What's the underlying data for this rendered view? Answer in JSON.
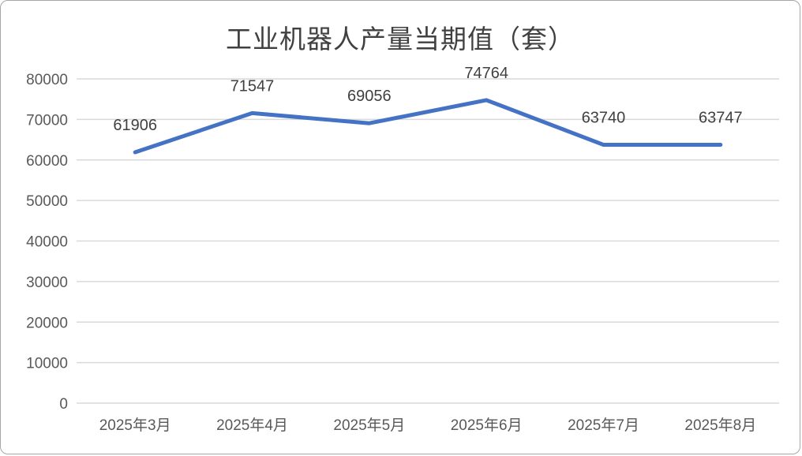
{
  "chart_data": {
    "type": "line",
    "title": "工业机器人产量当期值（套）",
    "categories": [
      "2025年3月",
      "2025年4月",
      "2025年5月",
      "2025年6月",
      "2025年7月",
      "2025年8月"
    ],
    "series": [
      {
        "name": "工业机器人产量当期值",
        "values": [
          61906,
          71547,
          69056,
          74764,
          63740,
          63747
        ]
      }
    ],
    "data_labels": [
      "61906",
      "71547",
      "69056",
      "74764",
      "63740",
      "63747"
    ],
    "xlabel": "",
    "ylabel": "",
    "ylim": [
      0,
      80000
    ],
    "ytick_step": 10000,
    "yticks": [
      "0",
      "10000",
      "20000",
      "30000",
      "40000",
      "50000",
      "60000",
      "70000",
      "80000"
    ],
    "grid": "horizontal",
    "legend": "none",
    "colors": {
      "line": "#4472C4",
      "gridline": "#D9D9D9",
      "axis_text": "#595959",
      "data_label_text": "#404040",
      "title_text": "#404040",
      "frame_border": "#A6A6A6",
      "background": "#FFFFFF"
    }
  }
}
